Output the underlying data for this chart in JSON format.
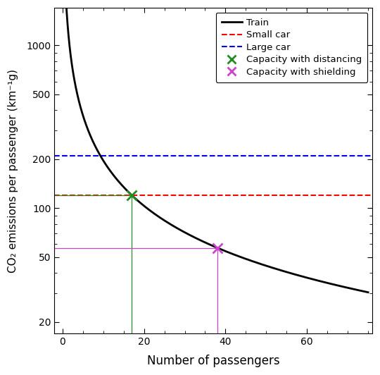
{
  "title": "",
  "xlabel": "Number of passengers",
  "ylabel": "CO₂ emissions per passenger (km⁻¹g)",
  "xlim": [
    -2,
    76
  ],
  "ylim_log": [
    17,
    1700
  ],
  "xticks": [
    0,
    20,
    40,
    60
  ],
  "yticks": [
    20,
    50,
    100,
    200,
    500,
    1000
  ],
  "small_car_y": 120,
  "large_car_y": 210,
  "distancing_x": 17,
  "distancing_y": 120,
  "shielding_x": 38,
  "shielding_y": 57,
  "small_car_color": "#FF0000",
  "large_car_color": "#0000FF",
  "distancing_color": "#228B22",
  "shielding_color": "#CC44CC",
  "train_color": "#000000",
  "crosshair_lw": 0.9,
  "legend_labels": [
    "Train",
    "Small car",
    "Large car",
    "Capacity with distancing",
    "Capacity with shielding"
  ],
  "figsize": [
    5.4,
    5.32
  ],
  "dpi": 100
}
